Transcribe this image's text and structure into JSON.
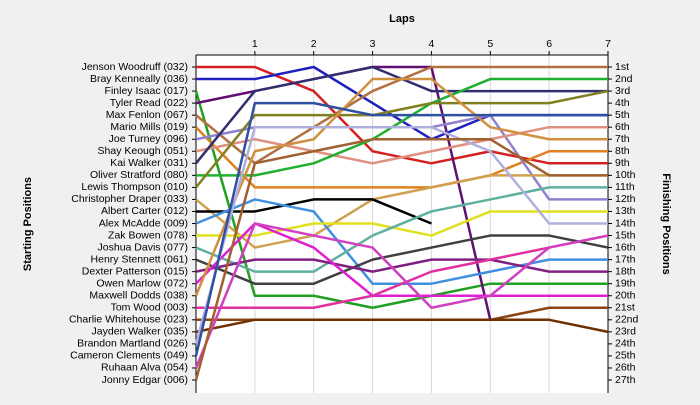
{
  "chart_data": {
    "type": "bump",
    "title": "Laps",
    "y_label": "Starting Positions",
    "y2_label": "Finishing Positions",
    "x": [
      0,
      1,
      2,
      3,
      4,
      5,
      6,
      7
    ],
    "xlim": [
      0,
      7
    ],
    "xticks": [
      1,
      2,
      3,
      4,
      5,
      6,
      7
    ],
    "ylim": [
      1,
      27
    ],
    "yticks": [
      {
        "value": 1,
        "label": "Jenson Woodruff (032)"
      },
      {
        "value": 2,
        "label": "Bray Kenneally (036)"
      },
      {
        "value": 3,
        "label": "Finley Isaac (017)"
      },
      {
        "value": 4,
        "label": "Tyler Read (022)"
      },
      {
        "value": 5,
        "label": "Max Fenlon (067)"
      },
      {
        "value": 6,
        "label": "Mario Mills (019)"
      },
      {
        "value": 7,
        "label": "Joe Turney (096)"
      },
      {
        "value": 8,
        "label": "Shay Keough (051)"
      },
      {
        "value": 9,
        "label": "Kai Walker (031)"
      },
      {
        "value": 10,
        "label": "Oliver Stratford (080)"
      },
      {
        "value": 11,
        "label": "Lewis Thompson (010)"
      },
      {
        "value": 12,
        "label": "Christopher Draper (033)"
      },
      {
        "value": 13,
        "label": "Albert Carter (012)"
      },
      {
        "value": 14,
        "label": "Alex McAdde (009)"
      },
      {
        "value": 15,
        "label": "Zak Bowen (078)"
      },
      {
        "value": 16,
        "label": "Joshua Davis (077)"
      },
      {
        "value": 17,
        "label": "Henry Stennett (061)"
      },
      {
        "value": 18,
        "label": "Dexter Patterson (015)"
      },
      {
        "value": 19,
        "label": "Owen Marlow (072)"
      },
      {
        "value": 20,
        "label": "Maxwell Dodds (038)"
      },
      {
        "value": 21,
        "label": "Tom Wood (003)"
      },
      {
        "value": 22,
        "label": "Charlie Whitehouse (023)"
      },
      {
        "value": 23,
        "label": "Jayden Walker (035)"
      },
      {
        "value": 24,
        "label": "Brandon Martland (026)"
      },
      {
        "value": 25,
        "label": "Cameron Clements (049)"
      },
      {
        "value": 26,
        "label": "Ruhaan Alva (054)"
      },
      {
        "value": 27,
        "label": "Jonny Edgar (006)"
      }
    ],
    "y2ticks": [
      {
        "value": 1,
        "label": "1st"
      },
      {
        "value": 2,
        "label": "2nd"
      },
      {
        "value": 3,
        "label": "3rd"
      },
      {
        "value": 4,
        "label": "4th"
      },
      {
        "value": 5,
        "label": "5th"
      },
      {
        "value": 6,
        "label": "6th"
      },
      {
        "value": 7,
        "label": "7th"
      },
      {
        "value": 8,
        "label": "8th"
      },
      {
        "value": 9,
        "label": "9th"
      },
      {
        "value": 10,
        "label": "10th"
      },
      {
        "value": 11,
        "label": "11th"
      },
      {
        "value": 12,
        "label": "12th"
      },
      {
        "value": 13,
        "label": "13th"
      },
      {
        "value": 14,
        "label": "14th"
      },
      {
        "value": 15,
        "label": "15th"
      },
      {
        "value": 16,
        "label": "16th"
      },
      {
        "value": 17,
        "label": "17th"
      },
      {
        "value": 18,
        "label": "18th"
      },
      {
        "value": 19,
        "label": "19th"
      },
      {
        "value": 20,
        "label": "20th"
      },
      {
        "value": 21,
        "label": "21st"
      },
      {
        "value": 22,
        "label": "22nd"
      },
      {
        "value": 23,
        "label": "23rd"
      },
      {
        "value": 24,
        "label": "24th"
      },
      {
        "value": 25,
        "label": "25th"
      },
      {
        "value": 26,
        "label": "26th"
      },
      {
        "value": 27,
        "label": "27th"
      }
    ],
    "grid": true,
    "series": [
      {
        "color": "#d42020",
        "values": [
          1,
          1,
          3,
          8,
          9,
          8,
          9,
          9
        ]
      },
      {
        "color": "#2020c0",
        "values": [
          2,
          2,
          1,
          4,
          7,
          5,
          5,
          5
        ]
      },
      {
        "color": "#20a020",
        "values": [
          3,
          20,
          20,
          21,
          20,
          19,
          19,
          19
        ]
      },
      {
        "color": "#601070",
        "values": [
          4,
          3,
          2,
          1,
          1,
          22,
          22,
          null
        ]
      },
      {
        "color": "#b07040",
        "values": [
          5,
          9,
          6,
          3,
          1,
          1,
          1,
          1
        ]
      },
      {
        "color": "#e08020",
        "values": [
          6,
          11,
          11,
          11,
          11,
          10,
          8,
          8
        ]
      },
      {
        "color": "#9080d0",
        "values": [
          7,
          6,
          6,
          6,
          6,
          5,
          12,
          12
        ]
      },
      {
        "color": "#e09080",
        "values": [
          8,
          7,
          8,
          9,
          8,
          7,
          6,
          6
        ]
      },
      {
        "color": "#303070",
        "values": [
          9,
          3,
          2,
          1,
          3,
          3,
          3,
          3
        ]
      },
      {
        "color": "#20b030",
        "values": [
          10,
          10,
          9,
          7,
          4,
          2,
          2,
          2
        ]
      },
      {
        "color": "#808020",
        "values": [
          11,
          5,
          5,
          5,
          4,
          4,
          4,
          3
        ]
      },
      {
        "color": "#d0a050",
        "values": [
          12,
          16,
          15,
          12,
          11,
          10,
          10,
          10
        ]
      },
      {
        "color": "#000000",
        "values": [
          13,
          13,
          12,
          12,
          14,
          null,
          null,
          null
        ]
      },
      {
        "color": "#4090e0",
        "values": [
          14,
          12,
          13,
          19,
          19,
          18,
          17,
          17
        ]
      },
      {
        "color": "#e0e020",
        "values": [
          15,
          15,
          14,
          14,
          15,
          13,
          13,
          13
        ]
      },
      {
        "color": "#60b0a0",
        "values": [
          16,
          18,
          18,
          15,
          13,
          12,
          11,
          11
        ]
      },
      {
        "color": "#404040",
        "values": [
          17,
          19,
          19,
          17,
          16,
          15,
          15,
          16
        ]
      },
      {
        "color": "#802080",
        "values": [
          18,
          17,
          17,
          18,
          17,
          17,
          18,
          18
        ]
      },
      {
        "color": "#e020d0",
        "values": [
          19,
          14,
          16,
          20,
          20,
          20,
          20,
          20
        ]
      },
      {
        "color": "#d09040",
        "values": [
          20,
          8,
          7,
          2,
          2,
          6,
          7,
          7
        ]
      },
      {
        "color": "#e030a0",
        "values": [
          21,
          21,
          21,
          20,
          18,
          17,
          16,
          15
        ]
      },
      {
        "color": "#8b4513",
        "values": [
          22,
          22,
          22,
          22,
          22,
          22,
          21,
          21
        ]
      },
      {
        "color": "#703000",
        "values": [
          23,
          22,
          22,
          22,
          22,
          22,
          22,
          23
        ]
      },
      {
        "color": "#b0b0e0",
        "values": [
          24,
          6,
          6,
          6,
          6,
          8,
          14,
          14
        ]
      },
      {
        "color": "#3050a0",
        "values": [
          25,
          4,
          4,
          5,
          5,
          5,
          5,
          5
        ]
      },
      {
        "color": "#d040c0",
        "values": [
          26,
          14,
          15,
          16,
          21,
          20,
          16,
          15
        ]
      },
      {
        "color": "#a06030",
        "values": [
          27,
          9,
          8,
          7,
          7,
          7,
          10,
          10
        ]
      }
    ]
  }
}
